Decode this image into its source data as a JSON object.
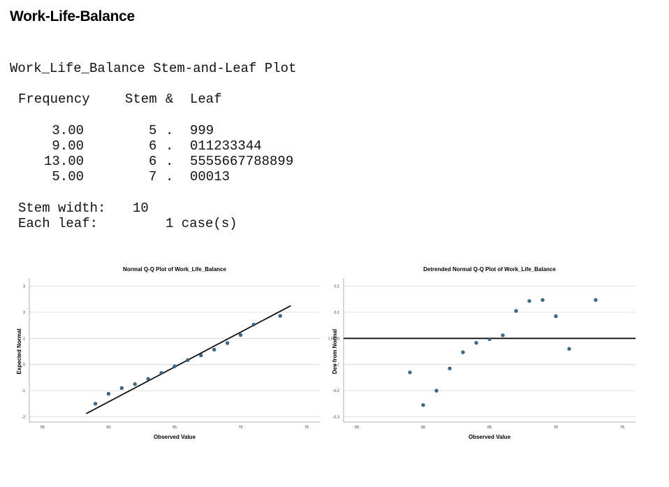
{
  "header": {
    "title": "Work-Life-Balance"
  },
  "stemleaf": {
    "title": "Work_Life_Balance Stem-and-Leaf Plot",
    "col_frequency": "Frequency",
    "col_stem": "Stem",
    "col_amp": "&",
    "col_leaf": "Leaf",
    "rows": [
      {
        "frequency": "3.00",
        "stem": "5",
        "dot": ".",
        "leaf": "999"
      },
      {
        "frequency": "9.00",
        "stem": "6",
        "dot": ".",
        "leaf": "011233344"
      },
      {
        "frequency": "13.00",
        "stem": "6",
        "dot": ".",
        "leaf": "5555667788899"
      },
      {
        "frequency": "5.00",
        "stem": "7",
        "dot": ".",
        "leaf": "00013"
      }
    ],
    "stem_width_label": "Stem width:",
    "stem_width_value": "10",
    "each_leaf_label": "Each leaf:",
    "each_leaf_value": "1 case(s)"
  },
  "chart_data": [
    {
      "type": "scatter",
      "title": "Normal Q-Q Plot of Work_Life_Balance",
      "xlabel": "Observed Value",
      "ylabel": "Expected Normal",
      "xlim": [
        54,
        76
      ],
      "ylim": [
        -2.2,
        3.2
      ],
      "x_ticks": [
        "55",
        "60",
        "65",
        "70",
        "75"
      ],
      "x_tick_values": [
        55,
        60,
        65,
        70,
        75
      ],
      "y_ticks": [
        "3",
        "2",
        "1",
        "0",
        "-1",
        "-2"
      ],
      "y_tick_values": [
        3,
        2,
        1,
        0,
        -1,
        -2
      ],
      "grid": "horizontal",
      "points": [
        [
          59,
          -1.5
        ],
        [
          60,
          -1.12
        ],
        [
          61,
          -0.9
        ],
        [
          62,
          -0.75
        ],
        [
          63,
          -0.55
        ],
        [
          64,
          -0.32
        ],
        [
          65,
          -0.07
        ],
        [
          66,
          0.17
        ],
        [
          67,
          0.35
        ],
        [
          68,
          0.57
        ],
        [
          69,
          0.82
        ],
        [
          70,
          1.13
        ],
        [
          71,
          1.53
        ],
        [
          73,
          1.86
        ]
      ],
      "reference_line": [
        [
          58.3,
          -1.88
        ],
        [
          73.8,
          2.25
        ]
      ],
      "point_color": "#3b6f8f"
    },
    {
      "type": "scatter",
      "title": "Detrended Normal Q-Q Plot of Work_Life_Balance",
      "xlabel": "Observed Value",
      "ylabel": "Dev from Normal",
      "xlim": [
        54,
        76
      ],
      "ylim": [
        -0.32,
        0.22
      ],
      "x_ticks": [
        "55",
        "60",
        "65",
        "70",
        "75"
      ],
      "x_tick_values": [
        55,
        60,
        65,
        70,
        75
      ],
      "y_ticks": [
        "0.2",
        "0.1",
        "0.0000",
        "-0.1",
        "-0.2",
        "-0.3"
      ],
      "y_tick_values": [
        0.2,
        0.1,
        0.0,
        -0.1,
        -0.2,
        -0.3
      ],
      "grid": "horizontal",
      "points": [
        [
          59,
          -0.13
        ],
        [
          60,
          -0.255
        ],
        [
          61,
          -0.2
        ],
        [
          62,
          -0.115
        ],
        [
          63,
          -0.053
        ],
        [
          64,
          -0.017
        ],
        [
          65,
          -0.003
        ],
        [
          66,
          0.012
        ],
        [
          67,
          0.105
        ],
        [
          68,
          0.143
        ],
        [
          69,
          0.147
        ],
        [
          70,
          0.085
        ],
        [
          71,
          -0.04
        ],
        [
          73,
          0.147
        ]
      ],
      "reference_line": [
        [
          54,
          0.0
        ],
        [
          76,
          0.0
        ]
      ],
      "point_color": "#3b6f8f"
    }
  ]
}
